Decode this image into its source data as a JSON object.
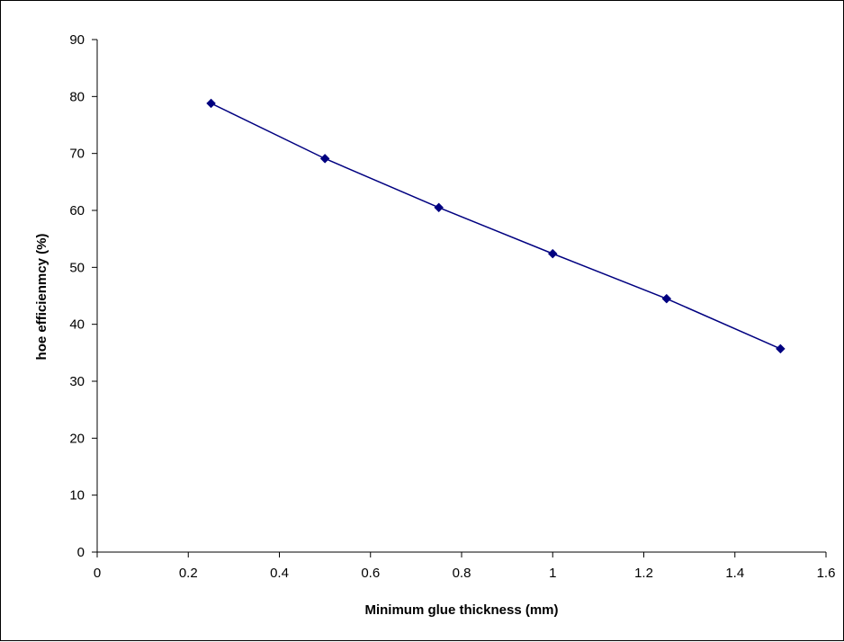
{
  "chart_data": {
    "type": "line",
    "title": "",
    "xlabel": "Minimum glue thickness (mm)",
    "ylabel": "hoe efficienmcy (%)",
    "xlim": [
      0,
      1.6
    ],
    "ylim": [
      0,
      90
    ],
    "x_ticks": [
      0,
      0.2,
      0.4,
      0.6,
      0.8,
      1,
      1.2,
      1.4,
      1.6
    ],
    "x_tick_labels": [
      "0",
      "0.2",
      "0.4",
      "0.6",
      "0.8",
      "1",
      "1.2",
      "1.4",
      "1.6"
    ],
    "y_ticks": [
      0,
      10,
      20,
      30,
      40,
      50,
      60,
      70,
      80,
      90
    ],
    "y_tick_labels": [
      "0",
      "10",
      "20",
      "30",
      "40",
      "50",
      "60",
      "70",
      "80",
      "90"
    ],
    "grid": false,
    "legend": "none",
    "marker": "diamond",
    "series": [
      {
        "color": "#000080",
        "x": [
          0.25,
          0.5,
          0.75,
          1.0,
          1.25,
          1.5
        ],
        "y": [
          78.8,
          69.1,
          60.5,
          52.4,
          44.5,
          35.7
        ]
      }
    ]
  }
}
